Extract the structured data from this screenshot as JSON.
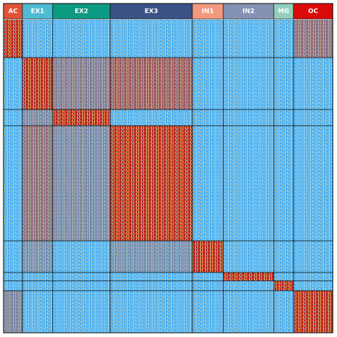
{
  "groups": [
    {
      "label": "AC",
      "color": "#e0533a"
    },
    {
      "label": "EX1",
      "color": "#4fbcd3"
    },
    {
      "label": "EX2",
      "color": "#0d9a82"
    },
    {
      "label": "EX3",
      "color": "#3b5286"
    },
    {
      "label": "IN1",
      "color": "#f19a7e"
    },
    {
      "label": "IN2",
      "color": "#8492b3"
    },
    {
      "label": "MG",
      "color": "#92d0bd"
    },
    {
      "label": "OC",
      "color": "#db0b0b"
    }
  ]
}
